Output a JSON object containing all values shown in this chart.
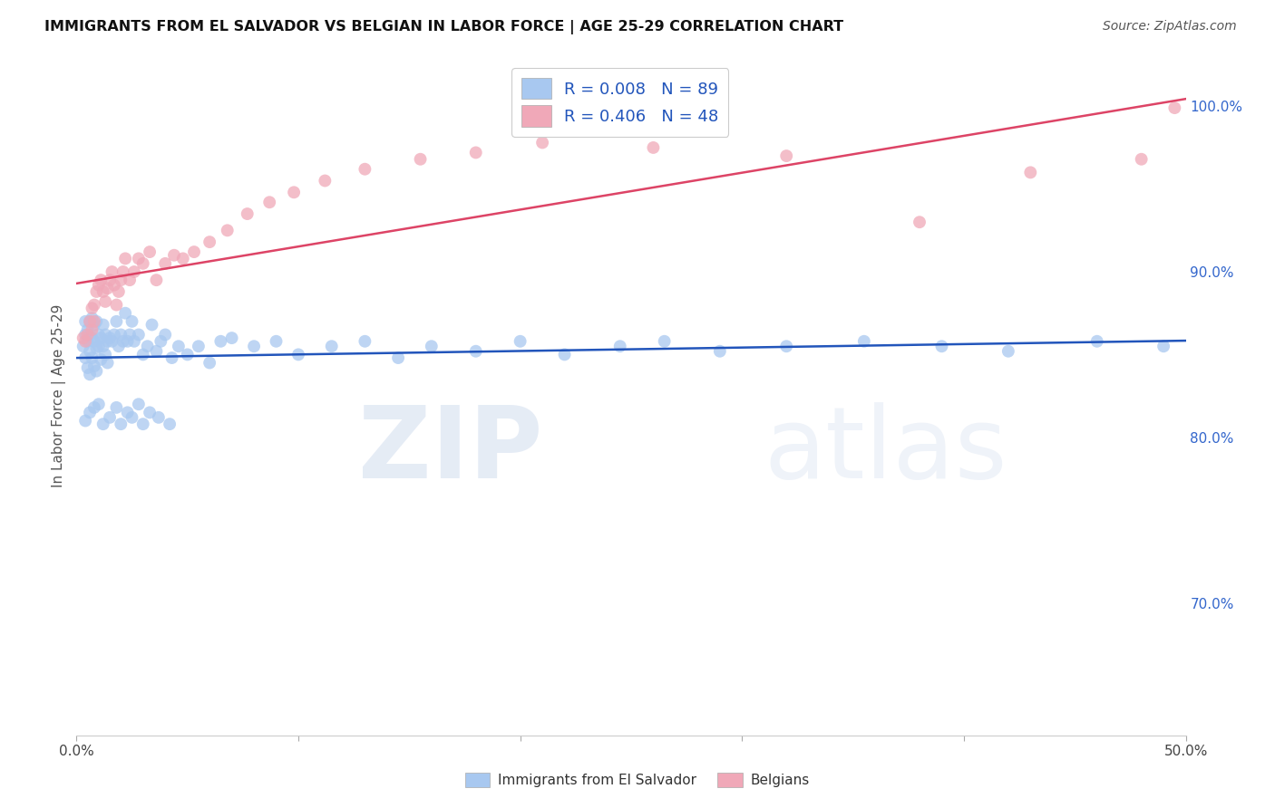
{
  "title": "IMMIGRANTS FROM EL SALVADOR VS BELGIAN IN LABOR FORCE | AGE 25-29 CORRELATION CHART",
  "source": "Source: ZipAtlas.com",
  "ylabel": "In Labor Force | Age 25-29",
  "xlim": [
    0.0,
    0.5
  ],
  "ylim": [
    0.62,
    1.03
  ],
  "ytick_labels_right": [
    "100.0%",
    "90.0%",
    "80.0%",
    "70.0%"
  ],
  "ytick_vals": [
    1.0,
    0.9,
    0.8,
    0.7
  ],
  "legend_r1": "R = 0.008",
  "legend_n1": "N = 89",
  "legend_r2": "R = 0.406",
  "legend_n2": "N = 48",
  "blue_color": "#A8C8F0",
  "pink_color": "#F0A8B8",
  "blue_line_color": "#2255BB",
  "pink_line_color": "#DD4466",
  "background_color": "#FFFFFF",
  "grid_color": "#CCCCCC",
  "watermark_zip": "ZIP",
  "watermark_atlas": "atlas",
  "el_salvador_x": [
    0.003,
    0.004,
    0.004,
    0.004,
    0.005,
    0.005,
    0.005,
    0.006,
    0.006,
    0.006,
    0.007,
    0.007,
    0.007,
    0.008,
    0.008,
    0.008,
    0.009,
    0.009,
    0.009,
    0.01,
    0.01,
    0.011,
    0.011,
    0.012,
    0.012,
    0.013,
    0.013,
    0.014,
    0.014,
    0.015,
    0.016,
    0.017,
    0.018,
    0.019,
    0.02,
    0.021,
    0.022,
    0.023,
    0.024,
    0.025,
    0.026,
    0.028,
    0.03,
    0.032,
    0.034,
    0.036,
    0.038,
    0.04,
    0.043,
    0.046,
    0.05,
    0.055,
    0.06,
    0.065,
    0.07,
    0.08,
    0.09,
    0.1,
    0.115,
    0.13,
    0.145,
    0.16,
    0.18,
    0.2,
    0.22,
    0.245,
    0.265,
    0.29,
    0.32,
    0.355,
    0.39,
    0.42,
    0.46,
    0.49,
    0.004,
    0.006,
    0.008,
    0.01,
    0.012,
    0.015,
    0.018,
    0.02,
    0.023,
    0.025,
    0.028,
    0.03,
    0.033,
    0.037,
    0.042
  ],
  "el_salvador_y": [
    0.855,
    0.862,
    0.848,
    0.87,
    0.858,
    0.842,
    0.865,
    0.852,
    0.87,
    0.838,
    0.86,
    0.848,
    0.872,
    0.858,
    0.843,
    0.868,
    0.854,
    0.87,
    0.84,
    0.862,
    0.855,
    0.847,
    0.86,
    0.855,
    0.868,
    0.85,
    0.862,
    0.858,
    0.845,
    0.86,
    0.858,
    0.862,
    0.87,
    0.855,
    0.862,
    0.858,
    0.875,
    0.858,
    0.862,
    0.87,
    0.858,
    0.862,
    0.85,
    0.855,
    0.868,
    0.852,
    0.858,
    0.862,
    0.848,
    0.855,
    0.85,
    0.855,
    0.845,
    0.858,
    0.86,
    0.855,
    0.858,
    0.85,
    0.855,
    0.858,
    0.848,
    0.855,
    0.852,
    0.858,
    0.85,
    0.855,
    0.858,
    0.852,
    0.855,
    0.858,
    0.855,
    0.852,
    0.858,
    0.855,
    0.81,
    0.815,
    0.818,
    0.82,
    0.808,
    0.812,
    0.818,
    0.808,
    0.815,
    0.812,
    0.82,
    0.808,
    0.815,
    0.812,
    0.808
  ],
  "belgians_x": [
    0.003,
    0.004,
    0.005,
    0.006,
    0.007,
    0.007,
    0.008,
    0.008,
    0.009,
    0.01,
    0.011,
    0.012,
    0.013,
    0.014,
    0.015,
    0.016,
    0.017,
    0.018,
    0.019,
    0.02,
    0.021,
    0.022,
    0.024,
    0.026,
    0.028,
    0.03,
    0.033,
    0.036,
    0.04,
    0.044,
    0.048,
    0.053,
    0.06,
    0.068,
    0.077,
    0.087,
    0.098,
    0.112,
    0.13,
    0.155,
    0.18,
    0.21,
    0.26,
    0.32,
    0.38,
    0.43,
    0.48,
    0.495
  ],
  "belgians_y": [
    0.86,
    0.858,
    0.862,
    0.87,
    0.878,
    0.865,
    0.88,
    0.87,
    0.888,
    0.892,
    0.895,
    0.888,
    0.882,
    0.89,
    0.895,
    0.9,
    0.892,
    0.88,
    0.888,
    0.895,
    0.9,
    0.908,
    0.895,
    0.9,
    0.908,
    0.905,
    0.912,
    0.895,
    0.905,
    0.91,
    0.908,
    0.912,
    0.918,
    0.925,
    0.935,
    0.942,
    0.948,
    0.955,
    0.962,
    0.968,
    0.972,
    0.978,
    0.975,
    0.97,
    0.93,
    0.96,
    0.968,
    0.999
  ]
}
